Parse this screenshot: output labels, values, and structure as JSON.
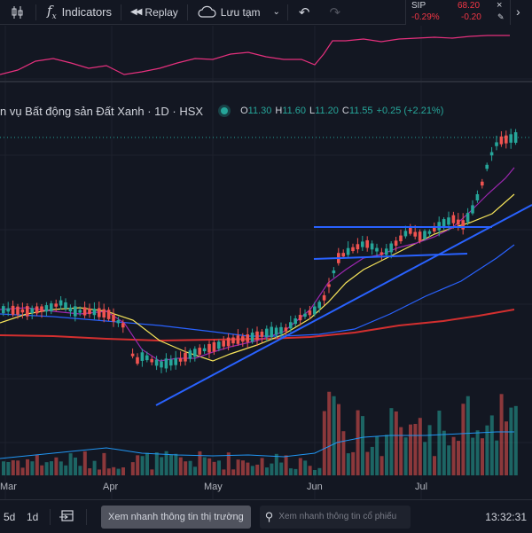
{
  "toolbar": {
    "indicators_label": "Indicators",
    "replay_label": "Replay",
    "save_label": "Lưu tạm"
  },
  "watchlist": {
    "symbol": "SIP",
    "price": "68.20",
    "change_pct": "-0.29%",
    "change": "-0.20",
    "color_down": "#f23645"
  },
  "legend": {
    "title": "n vụ Bất động sản Đất Xanh · 1D · HSX",
    "o_label": "O",
    "o_value": "11.30",
    "h_label": "H",
    "h_value": "11.60",
    "l_label": "L",
    "l_value": "11.20",
    "c_label": "C",
    "c_value": "11.55",
    "change": "+0.25 (+2.21%)"
  },
  "x_axis": [
    "Mar",
    "Apr",
    "May",
    "Jun",
    "Jul"
  ],
  "bottom": {
    "range_5d": "5d",
    "range_1d": "1d",
    "quick_view_button": "Xem nhanh thông tin thị trường",
    "search_placeholder": "Xem nhanh thông tin cổ phiếu",
    "clock": "13:32:31"
  },
  "colors": {
    "up": "#26a69a",
    "down": "#ef5350",
    "accent": "#2962ff",
    "bg": "#131722"
  }
}
